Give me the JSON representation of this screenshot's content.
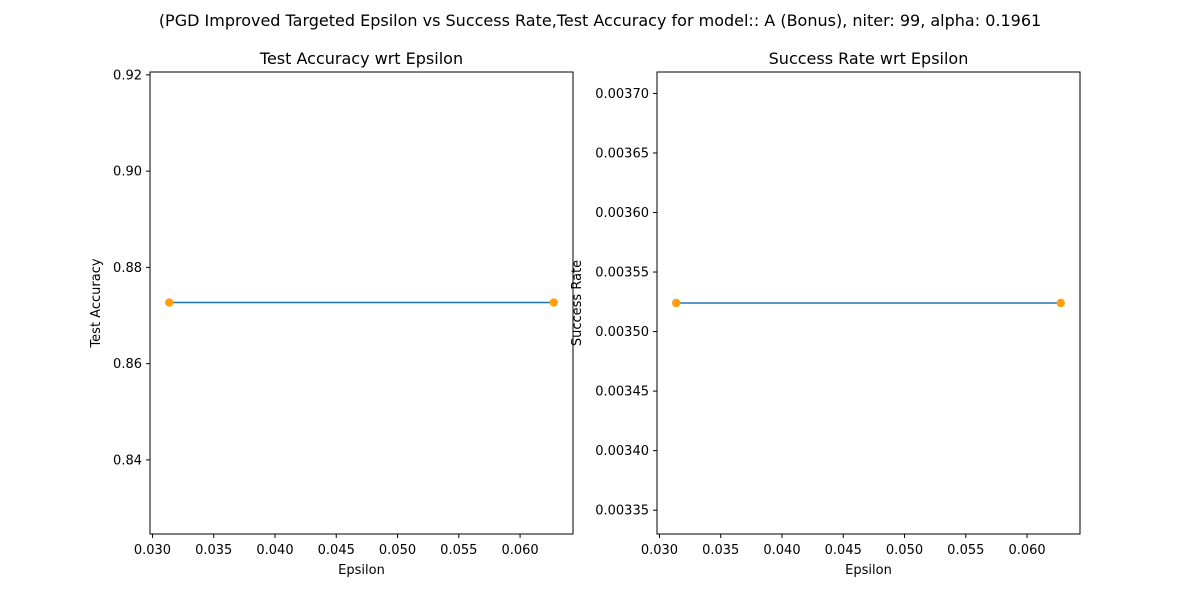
{
  "figure": {
    "suptitle": "(PGD Improved Targeted Epsilon vs Success Rate,Test Accuracy for model:: A (Bonus), niter: 99, alpha:  0.1961"
  },
  "chart_data": [
    {
      "type": "line",
      "title": "Test Accuracy wrt Epsilon",
      "xlabel": "Epsilon",
      "ylabel": "Test Accuracy",
      "x": [
        0.03137,
        0.06275
      ],
      "series": [
        {
          "values": [
            0.8727,
            0.8727
          ],
          "line_color": "#1f77b4",
          "marker_color": "#ff9f0e"
        }
      ],
      "xlim": [
        0.0298,
        0.06432
      ],
      "ylim": [
        0.8246,
        0.9206
      ],
      "xticks": [
        "0.030",
        "0.035",
        "0.040",
        "0.045",
        "0.050",
        "0.055",
        "0.060"
      ],
      "xtick_values": [
        0.03,
        0.035,
        0.04,
        0.045,
        0.05,
        0.055,
        0.06
      ],
      "yticks": [
        "0.84",
        "0.86",
        "0.88",
        "0.90",
        "0.92"
      ],
      "ytick_values": [
        0.84,
        0.86,
        0.88,
        0.9,
        0.92
      ],
      "grid": false,
      "legend": "none"
    },
    {
      "type": "line",
      "title": "Success Rate wrt Epsilon",
      "xlabel": "Epsilon",
      "ylabel": "Success Rate",
      "x": [
        0.03137,
        0.06275
      ],
      "series": [
        {
          "values": [
            0.003524,
            0.003524
          ],
          "line_color": "#1f77b4",
          "marker_color": "#ff9f0e"
        }
      ],
      "xlim": [
        0.0298,
        0.06432
      ],
      "ylim": [
        0.00333,
        0.003718
      ],
      "xticks": [
        "0.030",
        "0.035",
        "0.040",
        "0.045",
        "0.050",
        "0.055",
        "0.060"
      ],
      "xtick_values": [
        0.03,
        0.035,
        0.04,
        0.045,
        0.05,
        0.055,
        0.06
      ],
      "yticks": [
        "0.00335",
        "0.00340",
        "0.00345",
        "0.00350",
        "0.00355",
        "0.00360",
        "0.00365",
        "0.00370"
      ],
      "ytick_values": [
        0.00335,
        0.0034,
        0.00345,
        0.0035,
        0.00355,
        0.0036,
        0.00365,
        0.0037
      ],
      "grid": false,
      "legend": "none"
    }
  ]
}
